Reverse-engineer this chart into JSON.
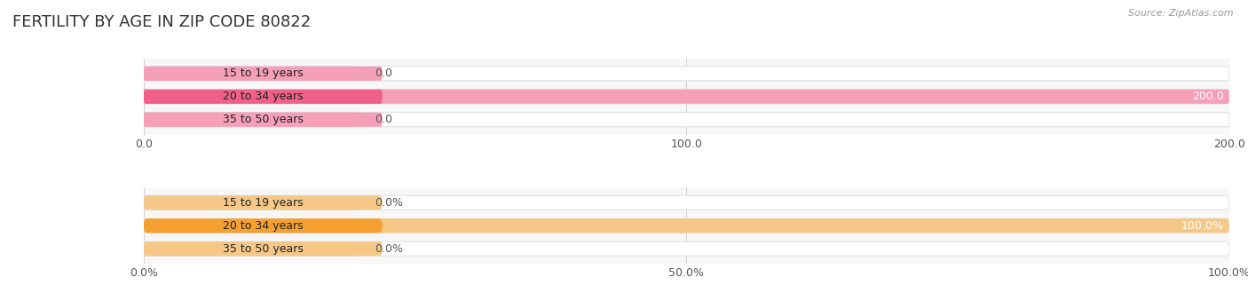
{
  "title": "FERTILITY BY AGE IN ZIP CODE 80822",
  "source": "Source: ZipAtlas.com",
  "top_chart": {
    "categories": [
      "15 to 19 years",
      "20 to 34 years",
      "35 to 50 years"
    ],
    "values": [
      0.0,
      200.0,
      0.0
    ],
    "bar_color": "#f0608a",
    "bar_color_light": "#f5a0b8",
    "track_color": "#f0f0f0",
    "track_edge_color": "#e0e0e0",
    "xlim": [
      0,
      200
    ],
    "xticks": [
      0.0,
      100.0,
      200.0
    ],
    "xtick_labels": [
      "0.0",
      "100.0",
      "200.0"
    ],
    "value_labels": [
      "0.0",
      "200.0",
      "0.0"
    ]
  },
  "bottom_chart": {
    "categories": [
      "15 to 19 years",
      "20 to 34 years",
      "35 to 50 years"
    ],
    "values": [
      0.0,
      100.0,
      0.0
    ],
    "bar_color": "#f5a030",
    "bar_color_light": "#f5c888",
    "track_color": "#f0f0f0",
    "track_edge_color": "#e0e0e0",
    "xlim": [
      0,
      100
    ],
    "xticks": [
      0.0,
      50.0,
      100.0
    ],
    "xtick_labels": [
      "0.0%",
      "50.0%",
      "100.0%"
    ],
    "value_labels": [
      "0.0%",
      "100.0%",
      "0.0%"
    ]
  },
  "bg_color": "#ffffff",
  "title_fontsize": 13,
  "label_fontsize": 9,
  "value_fontsize": 9,
  "tick_fontsize": 9
}
